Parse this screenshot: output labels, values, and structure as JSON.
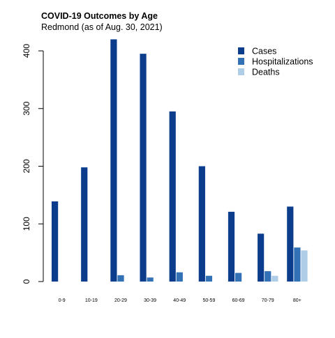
{
  "chart_data": {
    "type": "bar",
    "title": "COVID-19 Outcomes by Age",
    "subtitle": "Redmond (as of Aug. 30, 2021)",
    "xlabel": "",
    "ylabel": "",
    "ylim": [
      0,
      420
    ],
    "yticks": [
      0,
      100,
      200,
      300,
      400
    ],
    "grid": false,
    "legend_position": "top-right",
    "categories": [
      "0-9",
      "10-19",
      "20-29",
      "30-39",
      "40-49",
      "50-59",
      "60-69",
      "70-79",
      "80+"
    ],
    "series": [
      {
        "name": "Cases",
        "color": "#0b3d8c",
        "values": [
          139,
          198,
          420,
          395,
          295,
          200,
          121,
          83,
          130
        ]
      },
      {
        "name": "Hospitalizations",
        "color": "#3271b6",
        "values": [
          0,
          0,
          11,
          7,
          16,
          10,
          15,
          18,
          59
        ]
      },
      {
        "name": "Deaths",
        "color": "#afcde6",
        "values": [
          0,
          0,
          0,
          0,
          0,
          0,
          0,
          10,
          54
        ]
      }
    ]
  }
}
